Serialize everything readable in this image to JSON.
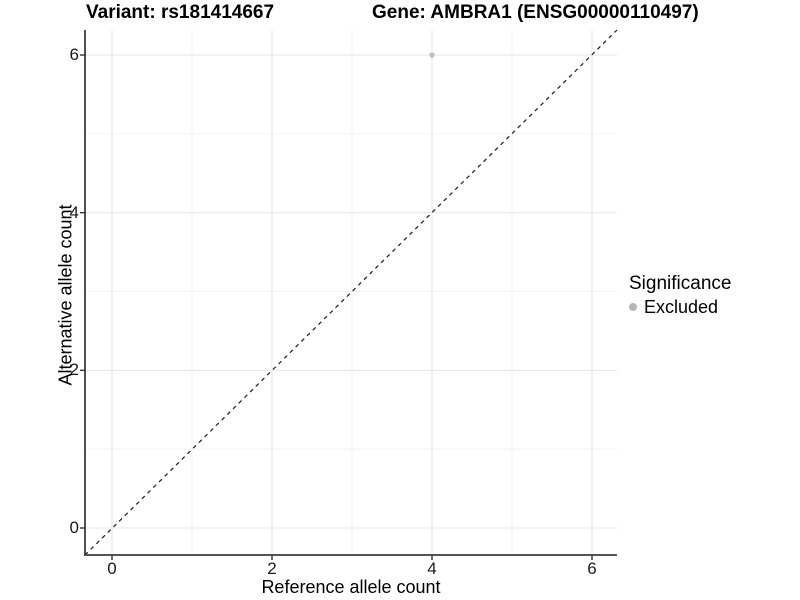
{
  "title": {
    "left": "Variant: rs181414667",
    "right": "Gene: AMBRA1 (ENSG00000110497)"
  },
  "axes": {
    "x_label": "Reference allele count",
    "y_label": "Alternative allele count"
  },
  "legend": {
    "title": "Significance",
    "items": [
      {
        "label": "Excluded",
        "color": "#b8b8b8"
      }
    ]
  },
  "colors": {
    "axis_line": "#3c3c3c",
    "tick_mark": "#333333",
    "grid_major": "#e6e6e6",
    "grid_minor": "#f2f2f2",
    "identity_line": "#1a1a1a",
    "point": "#bdbdbd"
  },
  "chart_data": {
    "type": "scatter",
    "title": "Variant: rs181414667    Gene: AMBRA1 (ENSG00000110497)",
    "xlabel": "Reference allele count",
    "ylabel": "Alternative allele count",
    "xlim": [
      -0.3,
      6.3
    ],
    "ylim": [
      -0.3,
      6.3
    ],
    "x_ticks": [
      0,
      2,
      4,
      6
    ],
    "y_ticks": [
      0,
      2,
      4,
      6
    ],
    "minor_ticks": [
      1,
      3,
      5
    ],
    "grid": "major and minor, very light gray on white",
    "legend_position": "right",
    "legend_title": "Significance",
    "series": [
      {
        "name": "Excluded",
        "color": "#bdbdbd",
        "points": [
          {
            "x": 4,
            "y": 6
          }
        ]
      }
    ],
    "reference_line": {
      "style": "dashed",
      "slope": 1,
      "intercept": 0
    }
  }
}
